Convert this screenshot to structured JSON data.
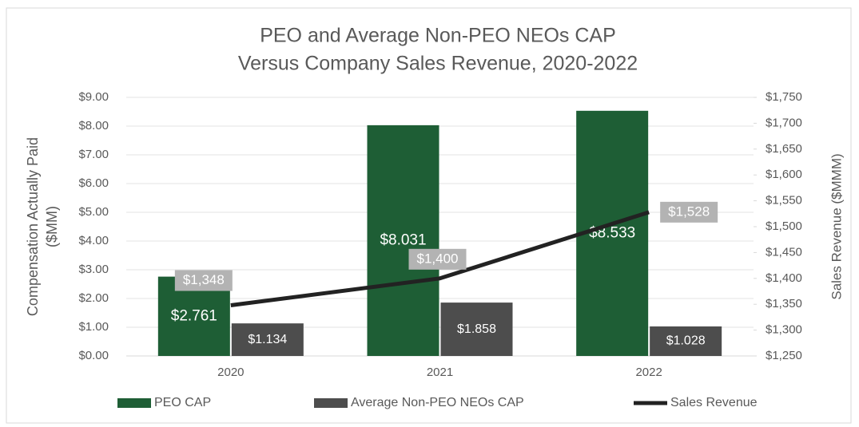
{
  "chart_data": {
    "type": "bar",
    "title": [
      "PEO and Average Non-PEO NEOs CAP",
      "Versus Company Sales Revenue, 2020-2022"
    ],
    "y_label": [
      "Compensation Actually Paid",
      "($MM)"
    ],
    "y2_label": "Sales Revenue ($MMM)",
    "categories": [
      "2020",
      "2021",
      "2022"
    ],
    "series": [
      {
        "name": "PEO CAP",
        "color": "#1e5e35",
        "values": [
          2.761,
          8.031,
          8.533
        ],
        "value_labels": [
          "$2.761",
          "$8.031",
          "$8.533"
        ]
      },
      {
        "name": "Average Non-PEO NEOs CAP",
        "color": "#4d4d4d",
        "values": [
          1.134,
          1.858,
          1.028
        ],
        "value_labels": [
          "$1.134",
          "$1.858",
          "$1.028"
        ]
      },
      {
        "name": "Sales Revenue",
        "color": "#222222",
        "type": "line",
        "axis": "y2",
        "values": [
          1348,
          1400,
          1528
        ],
        "value_labels": [
          "$1,348",
          "$1,400",
          "$1,528"
        ]
      }
    ],
    "ylim": [
      0,
      9
    ],
    "yticks": [
      {
        "value": 0,
        "label": "$0.00"
      },
      {
        "value": 1,
        "label": "$1.00"
      },
      {
        "value": 2,
        "label": "$2.00"
      },
      {
        "value": 3,
        "label": "$3.00"
      },
      {
        "value": 4,
        "label": "$4.00"
      },
      {
        "value": 5,
        "label": "$5.00"
      },
      {
        "value": 6,
        "label": "$6.00"
      },
      {
        "value": 7,
        "label": "$7.00"
      },
      {
        "value": 8,
        "label": "$8.00"
      },
      {
        "value": 9,
        "label": "$9.00"
      }
    ],
    "y2lim": [
      1250,
      1750
    ],
    "y2ticks": [
      {
        "value": 1250,
        "label": "$1,250"
      },
      {
        "value": 1300,
        "label": "$1,300"
      },
      {
        "value": 1350,
        "label": "$1,350"
      },
      {
        "value": 1400,
        "label": "$1,400"
      },
      {
        "value": 1450,
        "label": "$1,450"
      },
      {
        "value": 1500,
        "label": "$1,500"
      },
      {
        "value": 1550,
        "label": "$1,550"
      },
      {
        "value": 1600,
        "label": "$1,600"
      },
      {
        "value": 1650,
        "label": "$1,650"
      },
      {
        "value": 1700,
        "label": "$1,700"
      },
      {
        "value": 1750,
        "label": "$1,750"
      }
    ],
    "grid": true,
    "legend": "bottom"
  }
}
